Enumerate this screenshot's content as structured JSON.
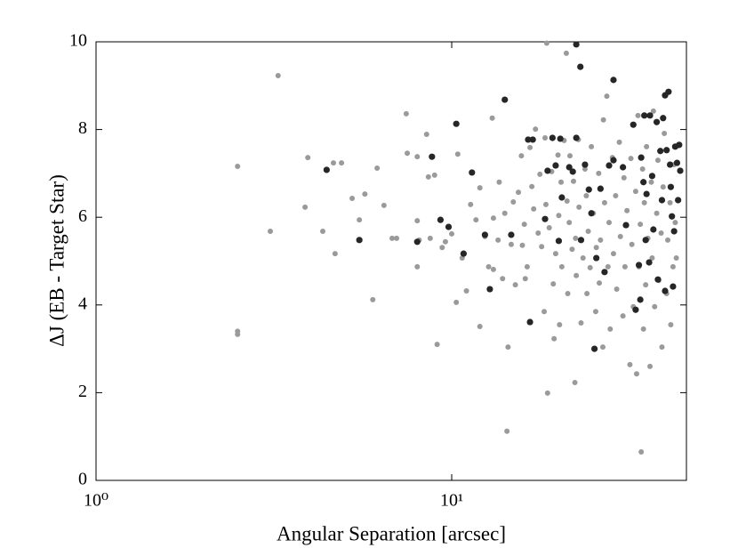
{
  "chart_data": {
    "type": "scatter",
    "xlabel": "Angular Separation [arcsec]",
    "ylabel": "ΔJ (EB - Target Star)",
    "xscale": "log",
    "xlim": [
      1,
      45.7
    ],
    "ylim": [
      0,
      10
    ],
    "xticks": [
      {
        "value": 1,
        "label": "10⁰"
      },
      {
        "value": 10,
        "label": "10¹"
      }
    ],
    "yticks": [
      0,
      2,
      4,
      6,
      8,
      10
    ],
    "grid": false,
    "series": [
      {
        "color": "#9a9a9a",
        "x": [
          2.5,
          2.5,
          2.5,
          3.25,
          3.09,
          3.87,
          3.94,
          4.34,
          4.65,
          4.9,
          4.7,
          5.25,
          5.7,
          5.5,
          6.17,
          6.45,
          6.8,
          7.0,
          6.0,
          7.45,
          7.5,
          8.0,
          8.0,
          8.0,
          8.1,
          8.5,
          8.6,
          8.7,
          8.95,
          9.1,
          9.4,
          9.6,
          10,
          10.3,
          10.4,
          10.7,
          11,
          11.3,
          11.7,
          12,
          12,
          12.4,
          12.7,
          13.0,
          13.1,
          13.1,
          13.5,
          13.6,
          13.9,
          14.1,
          14.3,
          14.4,
          14.7,
          14.9,
          15.1,
          15.4,
          15.7,
          15.8,
          16,
          16.1,
          16.3,
          16.6,
          16.8,
          17,
          17.2,
          17.5,
          17.7,
          17.9,
          18.2,
          18.3,
          18.4,
          18.5,
          18.6,
          18.8,
          19.1,
          19.3,
          19.4,
          19.6,
          19.9,
          20,
          20.1,
          20.3,
          20.4,
          20.7,
          21,
          21.1,
          21.2,
          21.4,
          21.5,
          21.8,
          22,
          22.2,
          22.3,
          22.4,
          22.7,
          22.8,
          23.1,
          23.4,
          23.7,
          23.9,
          24,
          24.2,
          24.5,
          24.7,
          25,
          25.4,
          25.5,
          25.9,
          26,
          26.2,
          26.6,
          26.7,
          26.9,
          27.3,
          27.5,
          27.7,
          27.9,
          28.3,
          28.5,
          28.9,
          29.1,
          29.6,
          29.8,
          30.3,
          30.5,
          30.7,
          31.1,
          31.7,
          31.9,
          32.1,
          32.4,
          32.9,
          33.1,
          33.4,
          33.6,
          33.9,
          34.1,
          34.4,
          34.6,
          34.8,
          35.1,
          35.3,
          35.6,
          36.1,
          36.4,
          36.6,
          36.9,
          37.2,
          37.7,
          38,
          38.2,
          38.8,
          39,
          39.3,
          39.6,
          40.2,
          40.5,
          41.1,
          41.3,
          41.9,
          42.2,
          42.5,
          42.8
        ],
        "y": [
          7.16,
          3.4,
          3.33,
          9.23,
          5.68,
          6.23,
          7.36,
          5.68,
          7.24,
          7.24,
          5.17,
          6.43,
          6.53,
          5.94,
          7.12,
          6.27,
          5.52,
          5.52,
          4.12,
          8.36,
          7.46,
          7.38,
          5.92,
          4.87,
          5.48,
          7.89,
          6.92,
          5.52,
          6.96,
          3.1,
          5.31,
          5.44,
          5.62,
          4.06,
          7.44,
          5.07,
          4.32,
          6.29,
          5.94,
          6.67,
          3.51,
          5.56,
          4.87,
          8.26,
          4.81,
          5.98,
          5.48,
          6.8,
          4.6,
          6.09,
          1.12,
          3.04,
          5.38,
          6.35,
          4.46,
          6.57,
          7.4,
          5.36,
          5.84,
          4.6,
          4.87,
          7.59,
          6.7,
          6.19,
          8.01,
          5.64,
          6.98,
          5.33,
          3.85,
          7.81,
          6.29,
          9.97,
          1.99,
          5.76,
          7.04,
          4.48,
          3.23,
          5.17,
          7.42,
          6.04,
          3.55,
          6.8,
          4.87,
          7.75,
          9.74,
          6.37,
          4.26,
          5.88,
          7.4,
          5.27,
          6.82,
          2.23,
          5.52,
          4.67,
          7.77,
          6.23,
          3.59,
          5.07,
          7.1,
          6.49,
          4.26,
          5.68,
          4.85,
          7.61,
          6.09,
          3.85,
          5.31,
          7.0,
          4.5,
          5.48,
          3.04,
          8.22,
          6.33,
          8.76,
          4.87,
          5.88,
          3.45,
          7.36,
          5.17,
          6.49,
          4.36,
          7.71,
          5.56,
          3.75,
          6.9,
          4.87,
          6.15,
          2.64,
          7.34,
          5.38,
          3.96,
          6.59,
          2.43,
          8.32,
          4.87,
          5.84,
          0.65,
          7.1,
          3.45,
          6.33,
          4.46,
          7.61,
          5.52,
          2.6,
          6.8,
          5.07,
          8.42,
          3.96,
          6.09,
          7.3,
          4.56,
          5.64,
          3.04,
          6.69,
          7.91,
          4.26,
          5.48,
          6.33,
          3.55,
          4.87,
          7.2,
          5.88,
          5.07
        ]
      },
      {
        "color": "#262626",
        "x": [
          4.45,
          5.5,
          8.0,
          8.8,
          9.3,
          9.8,
          10.3,
          10.8,
          11.4,
          12.4,
          12.8,
          14.1,
          14.7,
          16.4,
          16.9,
          16.6,
          18.3,
          18.6,
          19.2,
          19.6,
          20,
          20.2,
          20.4,
          21.4,
          21.9,
          22.4,
          22.4,
          23,
          23.1,
          23.7,
          24.3,
          24.7,
          25.2,
          25.5,
          26.2,
          26.9,
          27.7,
          28.5,
          28.5,
          30.3,
          30.9,
          32.4,
          32.9,
          33.6,
          33.9,
          34.1,
          34.6,
          34.8,
          35.1,
          35.3,
          35.9,
          36.1,
          36.6,
          36.9,
          37.7,
          38,
          38.6,
          39,
          39.3,
          39.8,
          39.8,
          40.2,
          40.7,
          41.1,
          41.3,
          41.6,
          41.9,
          42.2,
          42.5,
          43,
          43.3,
          43.6,
          43.9
        ],
        "y": [
          7.08,
          5.48,
          5.44,
          7.38,
          5.94,
          5.78,
          8.13,
          5.17,
          7.02,
          5.6,
          4.36,
          8.68,
          5.6,
          7.77,
          7.77,
          3.61,
          5.96,
          7.06,
          7.81,
          7.18,
          5.46,
          7.79,
          6.45,
          7.14,
          7.04,
          9.94,
          7.81,
          9.43,
          5.48,
          7.2,
          6.63,
          6.09,
          3.0,
          5.07,
          6.65,
          4.75,
          7.18,
          9.13,
          7.3,
          7.14,
          5.82,
          8.11,
          3.89,
          4.91,
          4.12,
          7.36,
          6.8,
          8.32,
          5.48,
          6.53,
          4.97,
          8.32,
          6.94,
          5.72,
          8.17,
          4.58,
          7.51,
          6.39,
          8.26,
          8.78,
          4.32,
          7.53,
          8.86,
          7.2,
          6.69,
          6.02,
          4.42,
          5.68,
          7.61,
          7.24,
          6.39,
          7.65,
          7.06
        ]
      }
    ]
  }
}
